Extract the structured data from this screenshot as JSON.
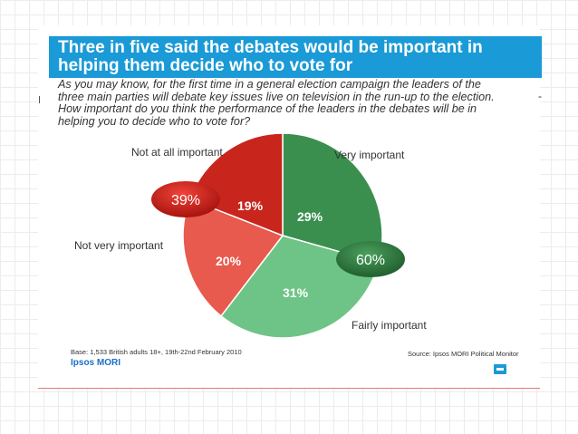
{
  "title": {
    "line1": "Three in five said the debates would be important in",
    "line2": "helping them decide who to vote for"
  },
  "question": {
    "line1": "As you may know, for the first time in a general election campaign the leaders of the",
    "line2": "three main parties will debate key issues live on television in the run-up to the election.",
    "line3": "How important do you think the performance of the leaders in the debates will be in",
    "line4": "helping you to decide who to vote for?"
  },
  "chart_data": {
    "type": "pie",
    "slices": [
      {
        "label": "Very important",
        "value": 29,
        "value_label": "29%",
        "color": "#3a8f4e"
      },
      {
        "label": "Fairly important",
        "value": 31,
        "value_label": "31%",
        "color": "#6ec486"
      },
      {
        "label": "Not very important",
        "value": 20,
        "value_label": "20%",
        "color": "#e8594e"
      },
      {
        "label": "Not at all important",
        "value": 19,
        "value_label": "19%",
        "color": "#c8261d"
      }
    ],
    "groups": [
      {
        "label": "39%",
        "value": 39,
        "color": "#c51b14"
      },
      {
        "label": "60%",
        "value": 60,
        "color": "#2e7a3e"
      }
    ]
  },
  "footer": {
    "base": "Base: 1,533 British adults 18+, 19th-22nd February 2010",
    "logo": "Ipsos MORI",
    "source": "Source: Ipsos MORI Political Monitor"
  },
  "colors": {
    "title_bar": "#1a9ad6",
    "logo": "#1a6fc4"
  }
}
